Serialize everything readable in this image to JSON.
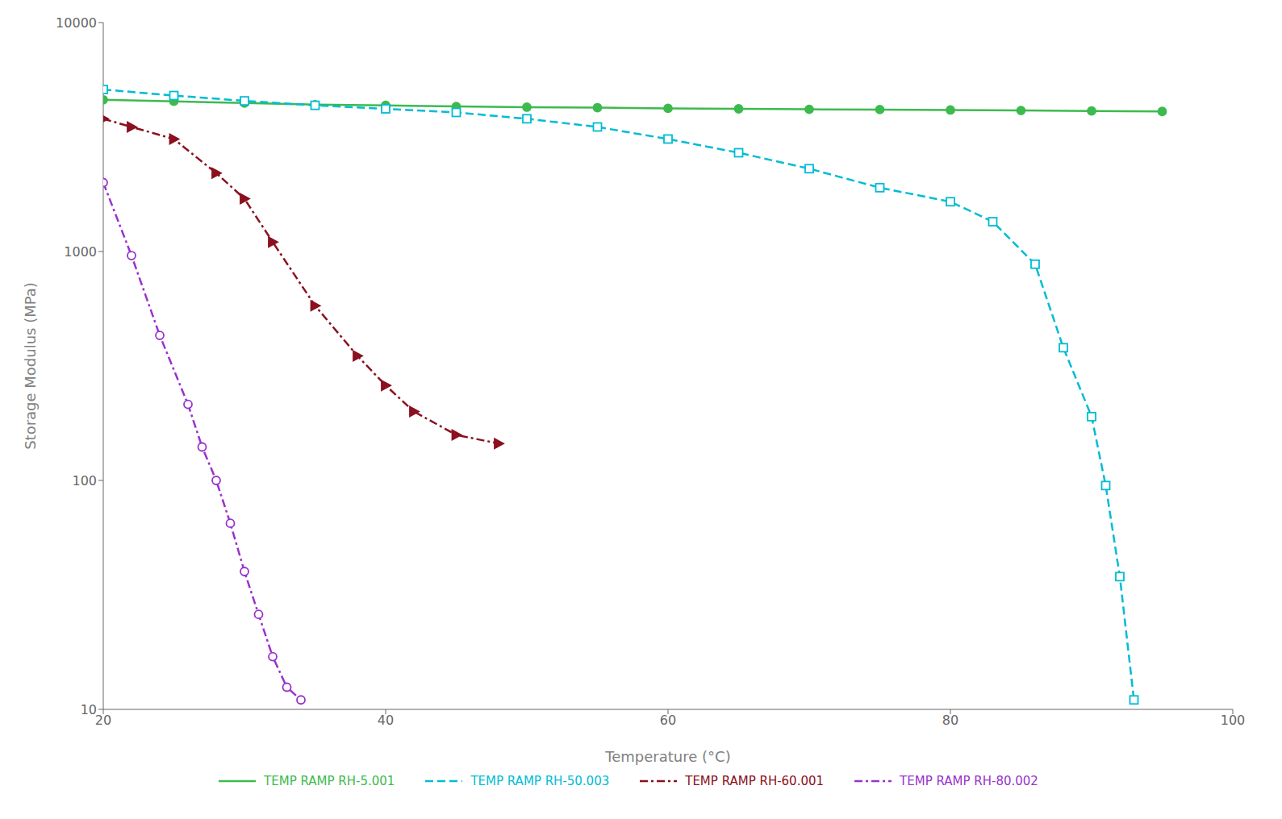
{
  "chart_data": {
    "type": "line",
    "xlabel": "Temperature (°C)",
    "ylabel": "Storage Modulus (MPa)",
    "xlim": [
      20,
      100
    ],
    "ylim": [
      10,
      10000
    ],
    "xticks": [
      20,
      40,
      60,
      80,
      100
    ],
    "yticks": [
      10,
      100,
      1000,
      10000
    ],
    "log": "y",
    "grid": false,
    "legend": "bottom",
    "series": [
      {
        "name": "TEMP RAMP RH-5.001",
        "color": "#3dba4e",
        "line_style": "solid",
        "marker": "circle",
        "x": [
          20,
          25,
          30,
          35,
          40,
          45,
          50,
          55,
          60,
          65,
          70,
          75,
          80,
          85,
          90,
          95
        ],
        "values": [
          4600,
          4530,
          4450,
          4380,
          4350,
          4300,
          4270,
          4250,
          4220,
          4200,
          4180,
          4170,
          4150,
          4130,
          4110,
          4090
        ]
      },
      {
        "name": "TEMP RAMP RH-50.003",
        "color": "#00bcd4",
        "line_style": "dashed",
        "marker": "square-open",
        "x": [
          20,
          25,
          30,
          35,
          40,
          45,
          50,
          55,
          60,
          65,
          70,
          75,
          80,
          83,
          86,
          88,
          90,
          91,
          92,
          93
        ],
        "values": [
          5100,
          4800,
          4550,
          4350,
          4200,
          4050,
          3800,
          3500,
          3100,
          2700,
          2300,
          1900,
          1650,
          1350,
          880,
          380,
          190,
          95,
          38,
          11
        ]
      },
      {
        "name": "TEMP RAMP RH-60.001",
        "color": "#8b1020",
        "line_style": "dashdot",
        "marker": "triangle-right",
        "x": [
          20,
          22,
          25,
          28,
          30,
          32,
          35,
          38,
          40,
          42,
          45,
          48
        ],
        "values": [
          3800,
          3500,
          3100,
          2200,
          1700,
          1100,
          580,
          350,
          260,
          200,
          158,
          145
        ]
      },
      {
        "name": "TEMP RAMP RH-80.002",
        "color": "#9932cc",
        "line_style": "dashdot",
        "marker": "circle-open",
        "x": [
          20,
          22,
          24,
          26,
          27,
          28,
          29,
          30,
          31,
          32,
          33,
          34
        ],
        "values": [
          2000,
          960,
          430,
          215,
          140,
          100,
          65,
          40,
          26,
          17,
          12.5,
          11
        ]
      }
    ]
  }
}
